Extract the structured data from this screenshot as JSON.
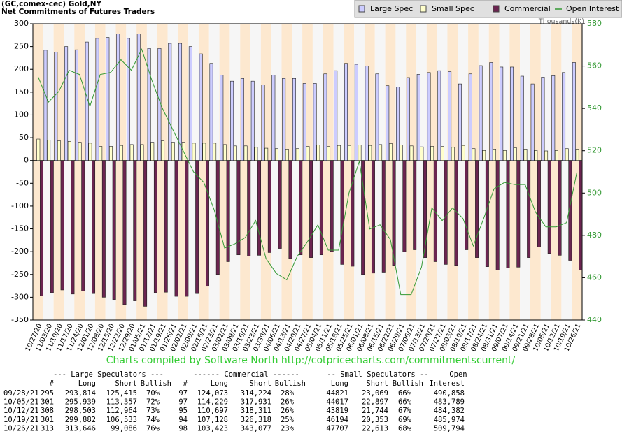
{
  "chart_data": {
    "type": "bar",
    "title": "(GC,comex-cec) Gold,NY",
    "subtitle": "Net Commitments of Futures Traders",
    "y2_label": "Thousands(K)",
    "categories": [
      "10/27/20",
      "11/03/20",
      "11/10/20",
      "11/17/20",
      "11/24/20",
      "12/01/20",
      "12/08/20",
      "12/15/20",
      "12/22/20",
      "12/29/20",
      "01/05/21",
      "01/12/21",
      "01/19/21",
      "01/26/21",
      "02/02/21",
      "02/09/21",
      "02/16/21",
      "02/23/21",
      "03/02/21",
      "03/09/21",
      "03/16/21",
      "03/23/21",
      "03/30/21",
      "04/06/21",
      "04/13/21",
      "04/20/21",
      "04/27/21",
      "05/04/21",
      "05/11/21",
      "05/18/21",
      "05/25/21",
      "06/01/21",
      "06/08/21",
      "06/15/21",
      "06/22/21",
      "06/29/21",
      "07/06/21",
      "07/13/21",
      "07/20/21",
      "07/27/21",
      "08/03/21",
      "08/10/21",
      "08/17/21",
      "08/24/21",
      "08/31/21",
      "09/07/21",
      "09/14/21",
      "09/21/21",
      "09/28/21",
      "10/05/21",
      "10/12/21",
      "10/19/21",
      "10/26/21"
    ],
    "series": [
      {
        "name": "Large Spec",
        "color": "#ccccff",
        "values": [
          null,
          242,
          238,
          250,
          243,
          260,
          268,
          270,
          278,
          268,
          278,
          246,
          246,
          257,
          257,
          250,
          234,
          213,
          187,
          174,
          180,
          174,
          166,
          187,
          180,
          180,
          169,
          169,
          190,
          197,
          213,
          211,
          207,
          190,
          164,
          161,
          182,
          189,
          193,
          197,
          195,
          168,
          190,
          208,
          215,
          205,
          205,
          185,
          168,
          183,
          186,
          193,
          215
        ]
      },
      {
        "name": "Small Spec",
        "color": "#ffffcc",
        "values": [
          47,
          45,
          43,
          42,
          40,
          38,
          31,
          31,
          33,
          35,
          35,
          40,
          43,
          40,
          40,
          38,
          38,
          38,
          35,
          32,
          32,
          29,
          27,
          26,
          25,
          26,
          31,
          34,
          31,
          33,
          33,
          34,
          33,
          35,
          37,
          34,
          32,
          30,
          31,
          31,
          29,
          33,
          26,
          22,
          25,
          22,
          28,
          25,
          22,
          21,
          22,
          26,
          25
        ]
      },
      {
        "name": "Commercial",
        "color": "#6b2450",
        "values": [
          -297,
          -290,
          -284,
          -293,
          -286,
          -292,
          -300,
          -305,
          -316,
          -308,
          -320,
          -290,
          -289,
          -298,
          -298,
          -292,
          -276,
          -250,
          -222,
          -207,
          -210,
          -208,
          -202,
          -193,
          -215,
          -207,
          -213,
          -207,
          -200,
          -228,
          -232,
          -250,
          -247,
          -245,
          -230,
          -200,
          -196,
          -213,
          -222,
          -228,
          -230,
          -196,
          -213,
          -233,
          -240,
          -236,
          -234,
          -213,
          -190,
          -204,
          -208,
          -219,
          -240
        ]
      },
      {
        "name": "Open Interest",
        "color": "#339933",
        "axis": "y2",
        "values": [
          555,
          543,
          548,
          558,
          556,
          541,
          556,
          557,
          563,
          558,
          568,
          553,
          540,
          530,
          520,
          510,
          505,
          492,
          474,
          476,
          479,
          487,
          469,
          462,
          459,
          470,
          477,
          485,
          473,
          473,
          500,
          515,
          483,
          485,
          478,
          452,
          452,
          465,
          493,
          487,
          493,
          488,
          475,
          488,
          502,
          505,
          504,
          504,
          491,
          484,
          484,
          486,
          510
        ]
      }
    ],
    "ylim": [
      -350,
      300
    ],
    "yticks": [
      -350,
      -300,
      -250,
      -200,
      -150,
      -100,
      -50,
      0,
      50,
      100,
      150,
      200,
      250,
      300
    ],
    "y2lim": [
      440,
      580
    ],
    "y2ticks": [
      440,
      460,
      480,
      500,
      520,
      540,
      560,
      580
    ],
    "legend": "top-right"
  },
  "source": "Charts compiled by Software North  http://cotpricecharts.com/commitmentscurrent/",
  "table": {
    "groups": [
      "--- Large Speculators ---",
      "------ Commercial ------",
      "-- Small Speculators --",
      "Open"
    ],
    "columns": [
      "#",
      "Long",
      "Short",
      "Bullish",
      "#",
      "Long",
      "Short",
      "Bullish",
      "Long",
      "Short",
      "Bullish",
      "Interest"
    ],
    "rows": [
      [
        "09/28/21",
        "295",
        "293,814",
        "125,415",
        "70%",
        "97",
        "124,073",
        "314,224",
        "28%",
        "44821",
        "23,069",
        "66%",
        "490,858"
      ],
      [
        "10/05/21",
        "301",
        "295,939",
        "113,357",
        "72%",
        "97",
        "114,229",
        "317,931",
        "26%",
        "44017",
        "22,897",
        "66%",
        "483,789"
      ],
      [
        "10/12/21",
        "308",
        "298,503",
        "112,964",
        "73%",
        "95",
        "110,697",
        "318,311",
        "26%",
        "43819",
        "21,744",
        "67%",
        "484,382"
      ],
      [
        "10/19/21",
        "301",
        "299,882",
        "106,533",
        "74%",
        "94",
        "107,128",
        "326,318",
        "25%",
        "46194",
        "20,353",
        "69%",
        "485,974"
      ],
      [
        "10/26/21",
        "313",
        "313,646",
        "99,086",
        "76%",
        "98",
        "103,423",
        "343,077",
        "23%",
        "47707",
        "22,613",
        "68%",
        "509,794"
      ]
    ]
  }
}
